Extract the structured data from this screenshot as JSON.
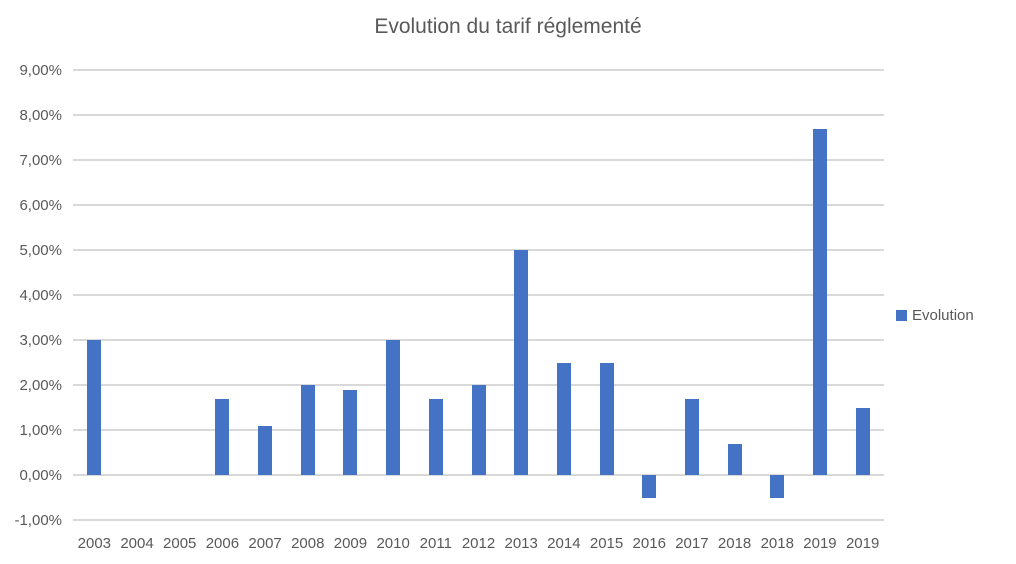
{
  "chart_data": {
    "type": "bar",
    "title": "Evolution du tarif réglementé",
    "categories": [
      "2003",
      "2004",
      "2005",
      "2006",
      "2007",
      "2008",
      "2009",
      "2010",
      "2011",
      "2012",
      "2013",
      "2014",
      "2015",
      "2016",
      "2017",
      "2018",
      "2018",
      "2019",
      "2019"
    ],
    "series": [
      {
        "name": "Evolution",
        "values": [
          3.0,
          0,
          0,
          1.7,
          1.1,
          2.0,
          1.9,
          3.0,
          1.7,
          2.0,
          5.0,
          2.5,
          2.5,
          -0.5,
          1.7,
          0.7,
          -0.5,
          7.7,
          1.5
        ],
        "color": "#4472C4"
      }
    ],
    "xlabel": "",
    "ylabel": "",
    "ylim": [
      -1,
      9
    ],
    "y_tick_step": 1,
    "y_tick_labels": [
      "9,00%",
      "8,00%",
      "7,00%",
      "6,00%",
      "5,00%",
      "4,00%",
      "3,00%",
      "2,00%",
      "1,00%",
      "0,00%",
      "-1,00%"
    ],
    "grid": true,
    "legend_position": "right",
    "colors": {
      "bar": "#4472C4",
      "gridline": "#D9D9D9",
      "text": "#595959"
    }
  }
}
